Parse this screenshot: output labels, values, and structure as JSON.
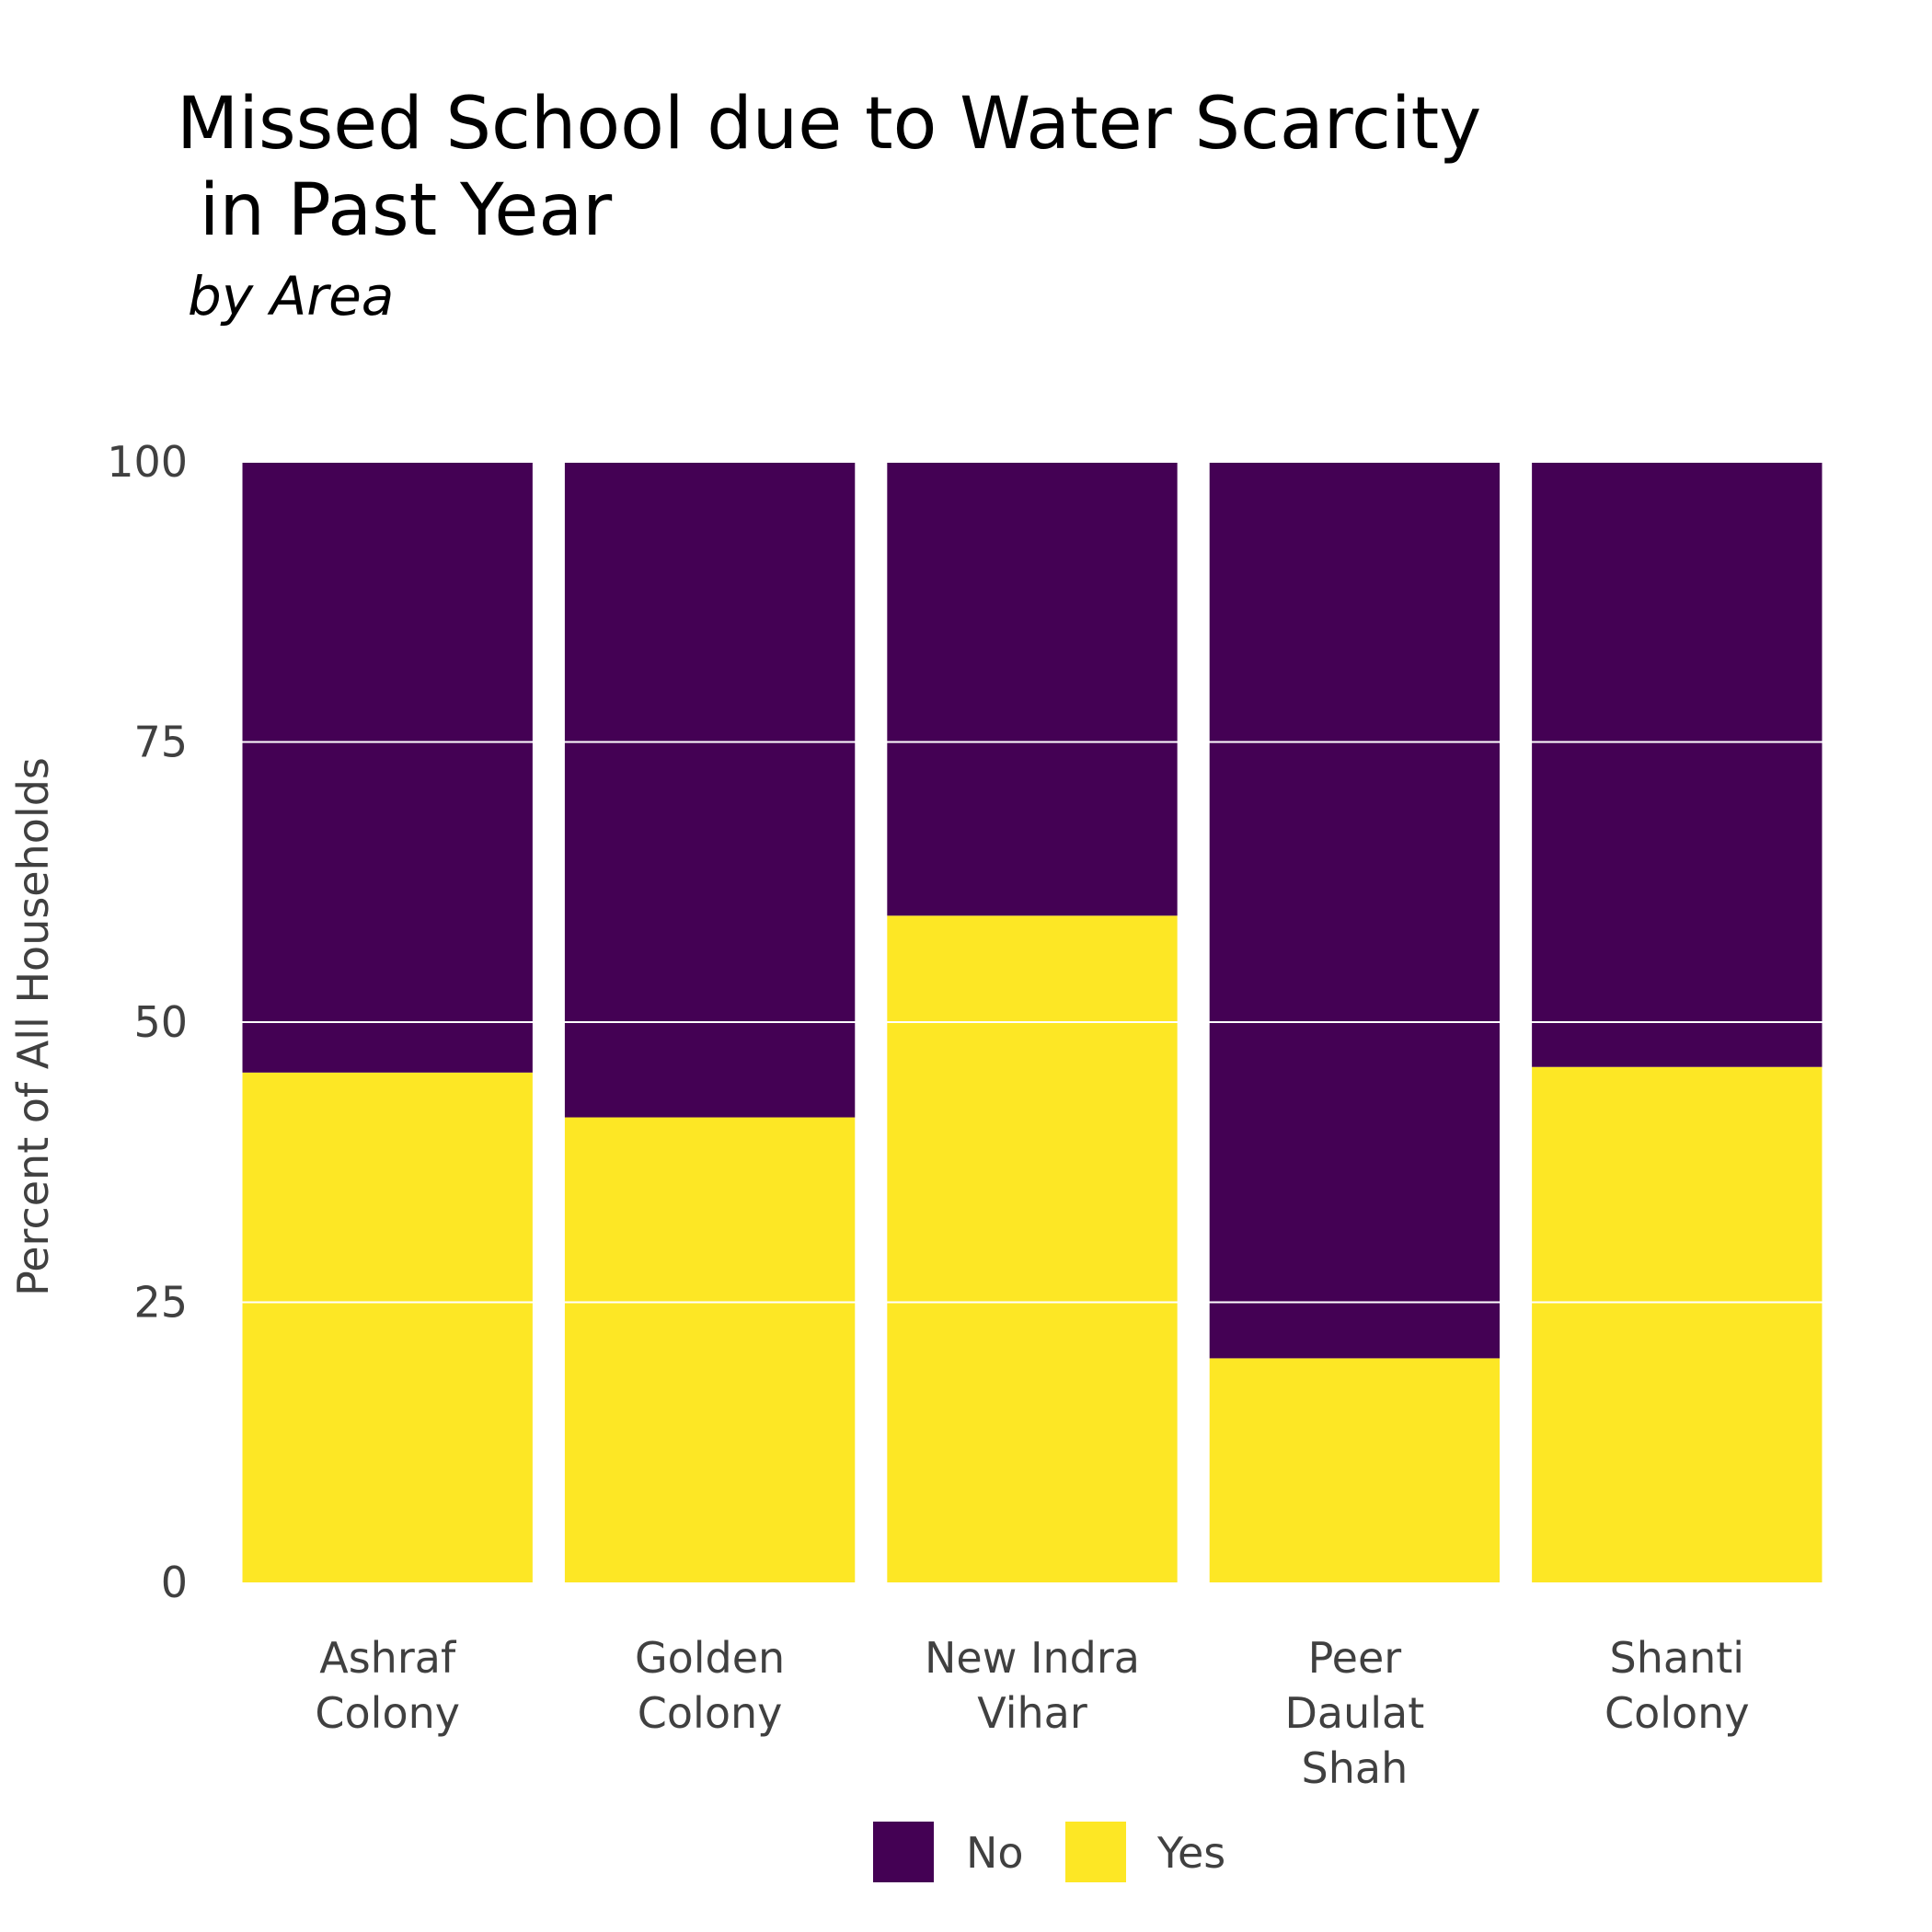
{
  "title": "Missed School due to Water Scarcity\n in Past Year",
  "subtitle": "by Area",
  "colors": {
    "No": "#440154",
    "Yes": "#fde725",
    "grid": "#ffffff"
  },
  "chart_data": {
    "type": "bar",
    "stacked": true,
    "categories": [
      "Ashraf Colony",
      "Golden Colony",
      "New Indra Vihar",
      "Peer Daulat Shah",
      "Shanti Colony"
    ],
    "category_label_lines": [
      [
        "Ashraf",
        "Colony"
      ],
      [
        "Golden",
        "Colony"
      ],
      [
        "New Indra",
        "Vihar"
      ],
      [
        "Peer",
        "Daulat",
        "Shah"
      ],
      [
        "Shanti",
        "Colony"
      ]
    ],
    "series": [
      {
        "name": "Yes",
        "values": [
          45.5,
          41.5,
          59.5,
          20.0,
          46.0
        ]
      },
      {
        "name": "No",
        "values": [
          54.5,
          58.5,
          40.5,
          80.0,
          54.0
        ]
      }
    ],
    "title": "Missed School due to Water Scarcity\n in Past Year",
    "subtitle": "by Area",
    "xlabel": "",
    "ylabel": "Percent of All Households",
    "ylim": [
      0,
      100
    ],
    "yticks": [
      "0",
      "25",
      "50",
      "75",
      "100"
    ],
    "grid": true,
    "legend": {
      "position": "bottom",
      "entries": [
        "No",
        "Yes"
      ]
    }
  }
}
